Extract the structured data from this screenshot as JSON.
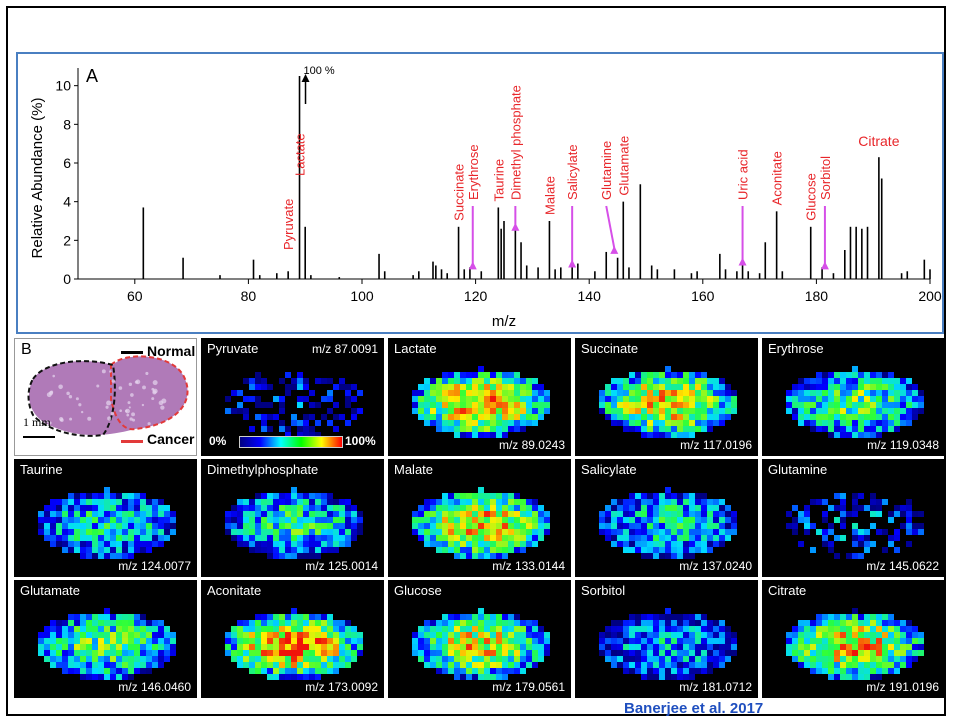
{
  "panel_a": {
    "label": "A",
    "ylabel": "Relative Abundance (%)",
    "xlabel": "m/z",
    "top_note": "100 %"
  },
  "chart_data": {
    "type": "bar",
    "title": "",
    "xlabel": "m/z",
    "ylabel": "Relative Abundance (%)",
    "xlim": [
      50,
      200
    ],
    "ylim": [
      0,
      10.5
    ],
    "xticks": [
      60,
      80,
      100,
      120,
      140,
      160,
      180,
      200
    ],
    "yticks": [
      0,
      2,
      4,
      6,
      8,
      10
    ],
    "peaks": [
      {
        "x": 61.5,
        "y": 3.7
      },
      {
        "x": 68.5,
        "y": 1.1
      },
      {
        "x": 75,
        "y": 0.2
      },
      {
        "x": 80.9,
        "y": 1.0
      },
      {
        "x": 82,
        "y": 0.2
      },
      {
        "x": 85,
        "y": 0.3
      },
      {
        "x": 87.0,
        "y": 0.4
      },
      {
        "x": 89.0,
        "y": 10.5
      },
      {
        "x": 90.0,
        "y": 2.7
      },
      {
        "x": 91,
        "y": 0.2
      },
      {
        "x": 96,
        "y": 0.1
      },
      {
        "x": 103,
        "y": 1.3
      },
      {
        "x": 104,
        "y": 0.4
      },
      {
        "x": 109,
        "y": 0.2
      },
      {
        "x": 110,
        "y": 0.4
      },
      {
        "x": 112.5,
        "y": 0.9
      },
      {
        "x": 113,
        "y": 0.7
      },
      {
        "x": 114,
        "y": 0.5
      },
      {
        "x": 115,
        "y": 0.3
      },
      {
        "x": 117.0,
        "y": 2.7
      },
      {
        "x": 118,
        "y": 0.5
      },
      {
        "x": 119.0,
        "y": 0.6
      },
      {
        "x": 121,
        "y": 0.4
      },
      {
        "x": 124.0,
        "y": 3.7
      },
      {
        "x": 124.5,
        "y": 2.6
      },
      {
        "x": 125.0,
        "y": 3.0
      },
      {
        "x": 127,
        "y": 2.6
      },
      {
        "x": 128,
        "y": 1.9
      },
      {
        "x": 129,
        "y": 0.7
      },
      {
        "x": 131,
        "y": 0.6
      },
      {
        "x": 133.0,
        "y": 3.0
      },
      {
        "x": 134,
        "y": 0.5
      },
      {
        "x": 135,
        "y": 0.6
      },
      {
        "x": 137.0,
        "y": 0.7
      },
      {
        "x": 138,
        "y": 0.8
      },
      {
        "x": 141,
        "y": 0.4
      },
      {
        "x": 143,
        "y": 1.4
      },
      {
        "x": 145.0,
        "y": 1.1
      },
      {
        "x": 146.0,
        "y": 4.0
      },
      {
        "x": 147,
        "y": 0.6
      },
      {
        "x": 149,
        "y": 4.9
      },
      {
        "x": 151,
        "y": 0.7
      },
      {
        "x": 152,
        "y": 0.5
      },
      {
        "x": 155,
        "y": 0.5
      },
      {
        "x": 158,
        "y": 0.3
      },
      {
        "x": 159,
        "y": 0.4
      },
      {
        "x": 163,
        "y": 1.3
      },
      {
        "x": 164,
        "y": 0.5
      },
      {
        "x": 166,
        "y": 0.4
      },
      {
        "x": 167.0,
        "y": 0.8
      },
      {
        "x": 168,
        "y": 0.4
      },
      {
        "x": 170,
        "y": 0.3
      },
      {
        "x": 171,
        "y": 1.9
      },
      {
        "x": 173.0,
        "y": 3.5
      },
      {
        "x": 174,
        "y": 0.4
      },
      {
        "x": 179.0,
        "y": 2.7
      },
      {
        "x": 181.0,
        "y": 0.6
      },
      {
        "x": 183,
        "y": 0.3
      },
      {
        "x": 185,
        "y": 1.5
      },
      {
        "x": 186,
        "y": 2.7
      },
      {
        "x": 187,
        "y": 2.7
      },
      {
        "x": 188,
        "y": 2.6
      },
      {
        "x": 189,
        "y": 2.7
      },
      {
        "x": 191.0,
        "y": 6.3
      },
      {
        "x": 191.5,
        "y": 5.2
      },
      {
        "x": 195,
        "y": 0.3
      },
      {
        "x": 196,
        "y": 0.4
      },
      {
        "x": 199,
        "y": 1.0
      },
      {
        "x": 200,
        "y": 0.5
      }
    ],
    "annotations": [
      {
        "text": "Pyruvate",
        "x": 87.0,
        "arrow": false
      },
      {
        "text": "Lactate",
        "x": 89.0,
        "arrow": false
      },
      {
        "text": "Succinate",
        "x": 117.0,
        "arrow": false
      },
      {
        "text": "Erythrose",
        "x": 119.5,
        "arrow": true
      },
      {
        "text": "Taurine",
        "x": 124.0,
        "arrow": false
      },
      {
        "text": "Dimethyl phosphate",
        "x": 127.0,
        "arrow": true
      },
      {
        "text": "Malate",
        "x": 133.0,
        "arrow": false
      },
      {
        "text": "Salicylate",
        "x": 137.0,
        "arrow": true
      },
      {
        "text": "Glutamine",
        "x": 143.0,
        "arrow": true
      },
      {
        "text": "Glutamate",
        "x": 146.0,
        "arrow": false
      },
      {
        "text": "Uric acid",
        "x": 167.0,
        "arrow": true
      },
      {
        "text": "Aconitate",
        "x": 173.0,
        "arrow": false
      },
      {
        "text": "Glucose",
        "x": 179.0,
        "arrow": false
      },
      {
        "text": "Sorbitol",
        "x": 181.5,
        "arrow": true
      },
      {
        "text": "Citrate",
        "x": 191.0,
        "arrow": false
      }
    ]
  },
  "panel_b": {
    "label": "B",
    "legend_normal": "Normal",
    "legend_cancer": "Cancer",
    "scale_label": "1 mm",
    "colorbar_min": "0%",
    "colorbar_max": "100%",
    "tiles": [
      {
        "name": "Pyruvate",
        "mz": "m/z 87.0091",
        "intensity": 0.15
      },
      {
        "name": "Lactate",
        "mz": "m/z 89.0243",
        "intensity": 0.85
      },
      {
        "name": "Succinate",
        "mz": "m/z 117.0196",
        "intensity": 0.8
      },
      {
        "name": "Erythrose",
        "mz": "m/z 119.0348",
        "intensity": 0.6
      },
      {
        "name": "Taurine",
        "mz": "m/z 124.0077",
        "intensity": 0.45
      },
      {
        "name": "Dimethylphosphate",
        "mz": "m/z 125.0014",
        "intensity": 0.5
      },
      {
        "name": "Malate",
        "mz": "m/z 133.0144",
        "intensity": 0.8
      },
      {
        "name": "Salicylate",
        "mz": "m/z 137.0240",
        "intensity": 0.45
      },
      {
        "name": "Glutamine",
        "mz": "m/z 145.0622",
        "intensity": 0.25
      },
      {
        "name": "Glutamate",
        "mz": "m/z 146.0460",
        "intensity": 0.6
      },
      {
        "name": "Aconitate",
        "mz": "m/z 173.0092",
        "intensity": 0.9
      },
      {
        "name": "Glucose",
        "mz": "m/z 179.0561",
        "intensity": 0.75
      },
      {
        "name": "Sorbitol",
        "mz": "m/z 181.0712",
        "intensity": 0.35
      },
      {
        "name": "Citrate",
        "mz": "m/z 191.0196",
        "intensity": 0.8
      }
    ]
  },
  "credit": "Banerjee et al. 2017",
  "colors": {
    "label_red": "#e8262a",
    "arrow_magenta": "#d64fe8",
    "panel_border": "#4a7fc1",
    "credit_blue": "#1f4fbf"
  }
}
